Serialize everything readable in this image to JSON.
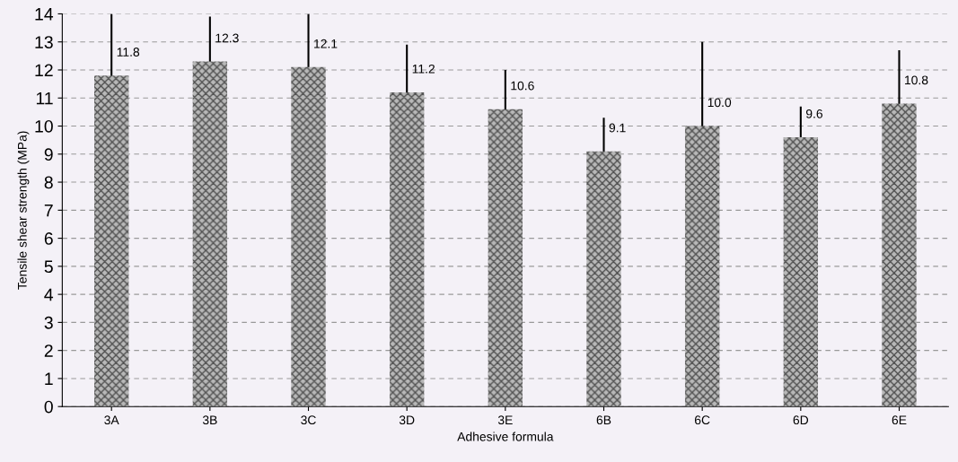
{
  "chart_data": {
    "type": "bar",
    "xlabel": "Adhesive formula",
    "ylabel": "Tensile shear strength (MPa)",
    "categories": [
      "3A",
      "3B",
      "3C",
      "3D",
      "3E",
      "6B",
      "6C",
      "6D",
      "6E"
    ],
    "values": [
      11.8,
      12.3,
      12.1,
      11.2,
      10.6,
      9.1,
      10.0,
      9.6,
      10.8
    ],
    "errors": [
      2.2,
      1.6,
      1.9,
      1.7,
      1.4,
      1.2,
      3.0,
      1.1,
      1.9
    ],
    "color": "#505050",
    "ylim": [
      0,
      14
    ],
    "yticks": [
      0,
      1,
      2,
      3,
      4,
      5,
      6,
      7,
      8,
      9,
      10,
      11,
      12,
      13,
      14
    ],
    "value_labels": [
      "11.8",
      "12.3",
      "12.1",
      "11.2",
      "10.6",
      "9.1",
      "10.0",
      "9.6",
      "10.8"
    ],
    "grid": "y"
  }
}
